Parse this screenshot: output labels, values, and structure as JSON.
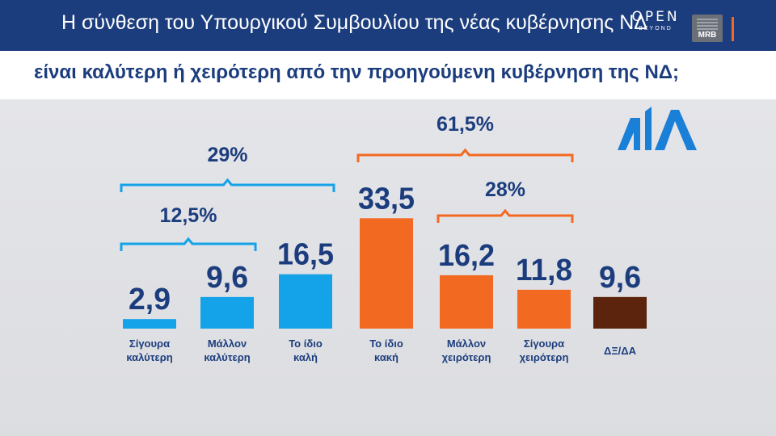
{
  "header": {
    "title": "Η σύνθεση του Υπουργικού Συμβουλίου της νέας κυβέρνησης ΝΔ",
    "logo_open": "OPEN",
    "logo_open_sub": "BEYOND",
    "logo_mrb": "MRB"
  },
  "subtitle": "είναι καλύτερη ή χειρότερη από την προηγούμενη κυβέρνηση της ΝΔ;",
  "colors": {
    "header_bg": "#1c3d7d",
    "positive": "#14a3e8",
    "negative": "#f26a21",
    "neutral": "#5c240c",
    "text": "#1c3d7d"
  },
  "chart_data": {
    "type": "bar",
    "categories": [
      [
        "Σίγουρα",
        "καλύτερη"
      ],
      [
        "Μάλλον",
        "καλύτερη"
      ],
      [
        "Το ίδιο",
        "καλή"
      ],
      [
        "Το ίδιο",
        "κακή"
      ],
      [
        "Μάλλον",
        "χειρότερη"
      ],
      [
        "Σίγουρα",
        "χειρότερη"
      ],
      [
        "ΔΞ/ΔΑ"
      ]
    ],
    "values": [
      2.9,
      9.6,
      16.5,
      33.5,
      16.2,
      11.8,
      9.6
    ],
    "value_labels": [
      "2,9",
      "9,6",
      "16,5",
      "33,5",
      "16,2",
      "11,8",
      "9,6"
    ],
    "bar_colors": [
      "#14a3e8",
      "#14a3e8",
      "#14a3e8",
      "#f26a21",
      "#f26a21",
      "#f26a21",
      "#5c240c"
    ],
    "brackets": [
      {
        "label": "29%",
        "from": 0,
        "to": 2,
        "color": "#14a3e8"
      },
      {
        "label": "12,5%",
        "from": 0,
        "to": 1,
        "color": "#14a3e8"
      },
      {
        "label": "61,5%",
        "from": 3,
        "to": 5,
        "color": "#f26a21"
      },
      {
        "label": "28%",
        "from": 4,
        "to": 5,
        "color": "#f26a21"
      }
    ],
    "grid": false,
    "legend": "none"
  }
}
